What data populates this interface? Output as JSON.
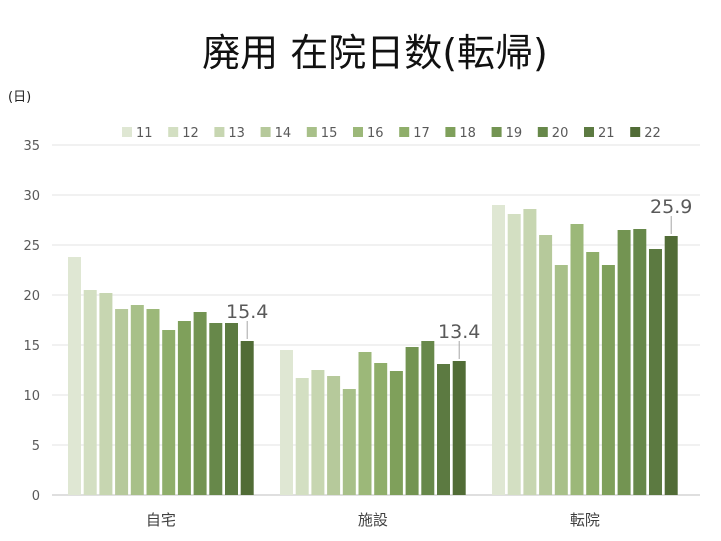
{
  "chart_data": {
    "type": "bar",
    "title": "廃用 在院日数(転帰)",
    "ylabel": "(日)",
    "xlabel": "",
    "ylim": [
      0,
      35
    ],
    "yticks": [
      0,
      5,
      10,
      15,
      20,
      25,
      30,
      35
    ],
    "grid": true,
    "legend_position": "top",
    "categories": [
      "自宅",
      "施設",
      "転院"
    ],
    "series": [
      {
        "name": "11",
        "color": "#dfe7d3",
        "values": [
          23.8,
          14.5,
          29.0
        ]
      },
      {
        "name": "12",
        "color": "#d3dfc2",
        "values": [
          20.5,
          11.7,
          28.1
        ]
      },
      {
        "name": "13",
        "color": "#c7d6b1",
        "values": [
          20.2,
          12.5,
          28.6
        ]
      },
      {
        "name": "14",
        "color": "#b6c99b",
        "values": [
          18.6,
          11.9,
          26.0
        ]
      },
      {
        "name": "15",
        "color": "#a8c089",
        "values": [
          19.0,
          10.6,
          23.0
        ]
      },
      {
        "name": "16",
        "color": "#9cb879",
        "values": [
          18.6,
          14.3,
          27.1
        ]
      },
      {
        "name": "17",
        "color": "#8fae6a",
        "values": [
          16.5,
          13.2,
          24.3
        ]
      },
      {
        "name": "18",
        "color": "#7fa05b",
        "values": [
          17.4,
          12.4,
          23.0
        ]
      },
      {
        "name": "19",
        "color": "#739452",
        "values": [
          18.3,
          14.8,
          26.5
        ]
      },
      {
        "name": "20",
        "color": "#67884a",
        "values": [
          17.2,
          15.4,
          26.6
        ]
      },
      {
        "name": "21",
        "color": "#5c7a41",
        "values": [
          17.2,
          13.1,
          24.6
        ]
      },
      {
        "name": "22",
        "color": "#516c36",
        "values": [
          15.4,
          13.4,
          25.9
        ]
      }
    ],
    "data_labels": [
      {
        "category": "自宅",
        "series": "22",
        "text": "15.4"
      },
      {
        "category": "施設",
        "series": "22",
        "text": "13.4"
      },
      {
        "category": "転院",
        "series": "22",
        "text": "25.9"
      }
    ]
  }
}
